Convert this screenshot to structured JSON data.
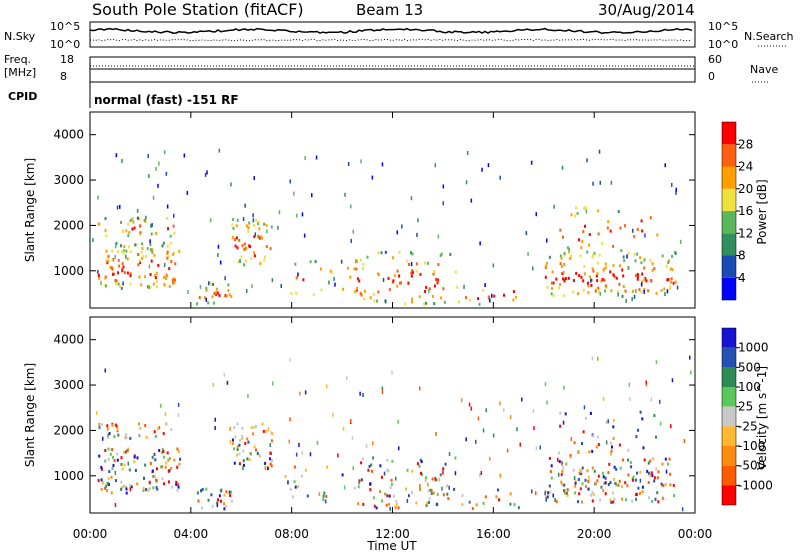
{
  "header": {
    "station": "South Pole Station (fitACF)",
    "beam": "Beam 13",
    "date": "30/Aug/2014"
  },
  "params": {
    "nsky_label": "N.Sky",
    "nsky_ticks": [
      "10^5",
      "10^0"
    ],
    "nsearch_label": "N.Search",
    "nsearch_ticks": [
      "10^5",
      "10^0"
    ],
    "freq_label": "Freq.",
    "freq_unit": "[MHz]",
    "freq_ticks": [
      "18",
      "8"
    ],
    "nave_label": "Nave",
    "nave_ticks": [
      "60",
      "0"
    ],
    "cpid_label": "CPID",
    "cpid_text": "normal (fast) -151 RF"
  },
  "colors": {
    "power": [
      "#0000ff",
      "#1a4bb5",
      "#2f8f5f",
      "#5ab85a",
      "#f0e040",
      "#ffa000",
      "#ff6010",
      "#ff0000"
    ],
    "velocity": [
      "#ff0000",
      "#ff5a00",
      "#ff8a10",
      "#ffb830",
      "#c8c8c8",
      "#5ac85a",
      "#2e8b57",
      "#2850b4",
      "#1414d2"
    ]
  },
  "chart_data": [
    {
      "type": "heatmap",
      "panel": "power",
      "ylabel": "Slant Range [km]",
      "y_ticks": [
        "1000",
        "2000",
        "3000",
        "4000"
      ],
      "ylim": [
        180,
        4500
      ],
      "xlim": [
        0,
        24
      ],
      "colorbar_label": "Power [dB]",
      "colorbar_ticks": [
        "4",
        "8",
        "12",
        "16",
        "20",
        "24",
        "28"
      ],
      "colorbar_range": [
        0,
        30
      ]
    },
    {
      "type": "heatmap",
      "panel": "velocity",
      "xlabel": "Time UT",
      "x_ticks": [
        "00:00",
        "04:00",
        "08:00",
        "12:00",
        "16:00",
        "20:00",
        "00:00"
      ],
      "ylabel": "Slant Range [km]",
      "y_ticks": [
        "1000",
        "2000",
        "3000",
        "4000"
      ],
      "ylim": [
        180,
        4500
      ],
      "xlim": [
        0,
        24
      ],
      "colorbar_label": "Velocity [m s^-1]",
      "colorbar_ticks": [
        "1000",
        "500",
        "100",
        "25",
        "-25",
        "-100",
        "-500",
        "-1000"
      ]
    }
  ]
}
